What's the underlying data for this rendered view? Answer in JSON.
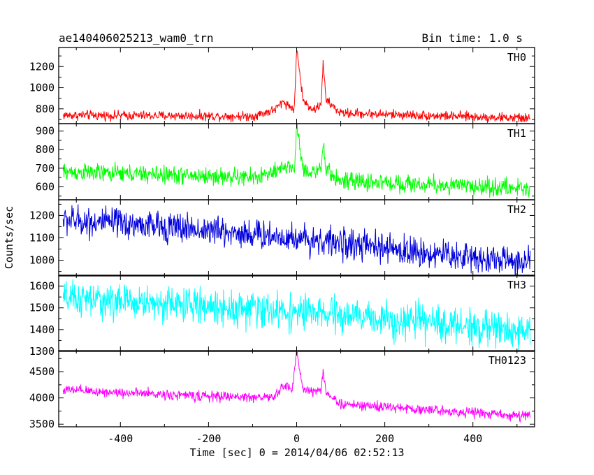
{
  "chart_data": {
    "type": "line",
    "title": "ae140406025213_wam0_trn",
    "bin_time_label": "Bin time: 1.0 s",
    "xlabel": "Time [sec] 0 = 2014/04/06 02:52:13",
    "ylabel": "Counts/sec",
    "xlim": [
      -540,
      540
    ],
    "x_ticks": [
      "-400",
      "-200",
      "0",
      "200",
      "400"
    ],
    "x_tick_values": [
      -400,
      -200,
      0,
      200,
      400
    ],
    "x_data_range": [
      -530,
      530
    ],
    "panels": [
      {
        "name": "TH0",
        "color": "#ff0000",
        "ylim": [
          660,
          1380
        ],
        "y_ticks": [
          "800",
          "1000",
          "1200"
        ],
        "y_tick_values": [
          800,
          1000,
          1200
        ],
        "profile": [
          [
            -530,
            740
          ],
          [
            -100,
            730
          ],
          [
            -50,
            790
          ],
          [
            -30,
            870
          ],
          [
            -15,
            820
          ],
          [
            -5,
            800
          ],
          [
            0,
            1380
          ],
          [
            8,
            1100
          ],
          [
            15,
            870
          ],
          [
            40,
            790
          ],
          [
            55,
            840
          ],
          [
            60,
            1220
          ],
          [
            67,
            880
          ],
          [
            100,
            760
          ],
          [
            530,
            710
          ]
        ],
        "noise": 28
      },
      {
        "name": "TH1",
        "color": "#00ff00",
        "ylim": [
          530,
          940
        ],
        "y_ticks": [
          "600",
          "700",
          "800",
          "900"
        ],
        "y_tick_values": [
          600,
          700,
          800,
          900
        ],
        "profile": [
          [
            -530,
            680
          ],
          [
            -100,
            650
          ],
          [
            -40,
            680
          ],
          [
            -25,
            720
          ],
          [
            -5,
            690
          ],
          [
            0,
            940
          ],
          [
            8,
            800
          ],
          [
            15,
            690
          ],
          [
            55,
            680
          ],
          [
            60,
            820
          ],
          [
            67,
            690
          ],
          [
            100,
            630
          ],
          [
            530,
            590
          ]
        ],
        "noise": 30
      },
      {
        "name": "TH2",
        "color": "#0000dd",
        "ylim": [
          930,
          1270
        ],
        "y_ticks": [
          "1000",
          "1100",
          "1200"
        ],
        "y_tick_values": [
          1000,
          1100,
          1200
        ],
        "profile": [
          [
            -530,
            1180
          ],
          [
            -300,
            1150
          ],
          [
            0,
            1100
          ],
          [
            250,
            1040
          ],
          [
            530,
            990
          ]
        ],
        "noise": 42
      },
      {
        "name": "TH3",
        "color": "#00ffff",
        "ylim": [
          1300,
          1650
        ],
        "y_ticks": [
          "1300",
          "1400",
          "1500",
          "1600"
        ],
        "y_tick_values": [
          1300,
          1400,
          1500,
          1600
        ],
        "profile": [
          [
            -530,
            1540
          ],
          [
            -300,
            1520
          ],
          [
            0,
            1480
          ],
          [
            250,
            1440
          ],
          [
            530,
            1390
          ]
        ],
        "noise": 50
      },
      {
        "name": "TH0123",
        "color": "#ff00ff",
        "ylim": [
          3450,
          4900
        ],
        "y_ticks": [
          "3500",
          "4000",
          "4500"
        ],
        "y_tick_values": [
          3500,
          4000,
          4500
        ],
        "profile": [
          [
            -530,
            4150
          ],
          [
            -200,
            4030
          ],
          [
            -50,
            4010
          ],
          [
            -30,
            4250
          ],
          [
            -10,
            4150
          ],
          [
            0,
            4900
          ],
          [
            8,
            4500
          ],
          [
            15,
            4150
          ],
          [
            55,
            4120
          ],
          [
            60,
            4550
          ],
          [
            67,
            4100
          ],
          [
            100,
            3880
          ],
          [
            530,
            3650
          ]
        ],
        "noise": 60
      }
    ]
  }
}
